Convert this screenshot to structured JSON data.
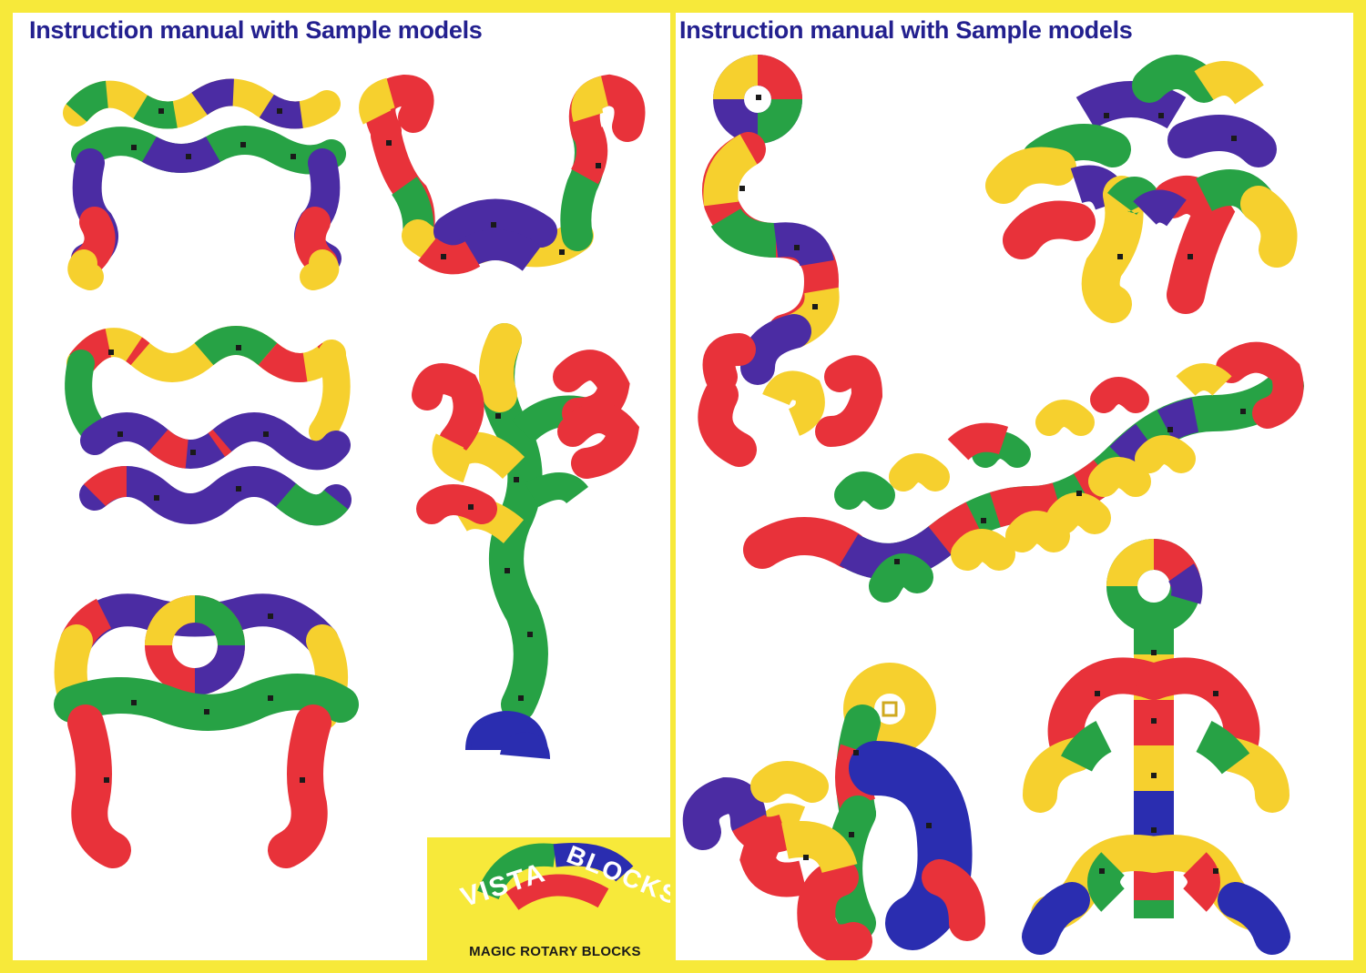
{
  "left_page": {
    "title": "Instruction manual with Sample models"
  },
  "right_page": {
    "title": "Instruction manual with Sample models"
  },
  "logo": {
    "word1": "VISTA",
    "word2": "BLOCKS",
    "tagline": "MAGIC ROTARY BLOCKS"
  },
  "colors": {
    "title_text": "#23208f",
    "border_yellow": "#f7e93a",
    "block_red": "#e8323a",
    "block_yellow": "#f6d02e",
    "block_green": "#27a245",
    "block_purple": "#4b2ca3",
    "block_blue": "#2a2db0",
    "hole": "#1a1a1a"
  },
  "icons": [
    "block-model-bridge",
    "block-model-snake-arch",
    "block-model-double-loop",
    "block-model-plant",
    "block-model-table",
    "block-model-spiral-snake",
    "block-model-flower",
    "block-model-caterpillar",
    "block-model-scorpion",
    "block-model-tower"
  ]
}
